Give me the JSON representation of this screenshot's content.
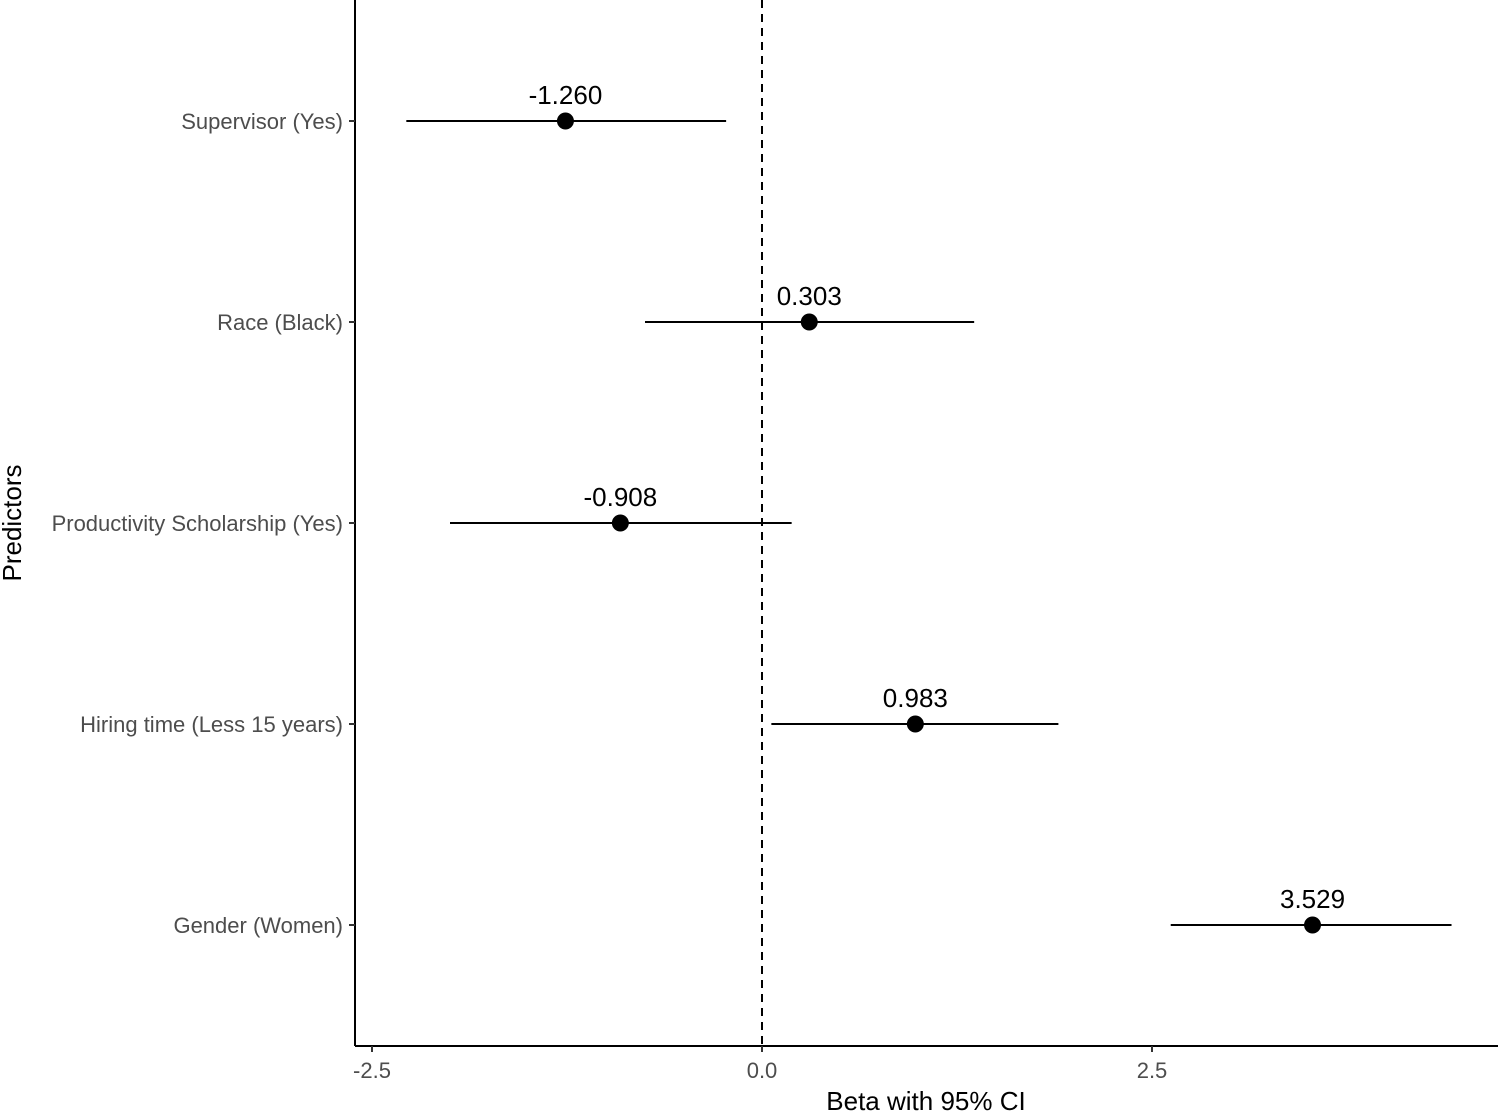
{
  "chart_data": {
    "type": "scatter",
    "title": "",
    "xlabel": "Beta with 95% CI",
    "ylabel": "Predictors",
    "xlim": [
      -2.5,
      4.85
    ],
    "x_ticks": [
      -2.5,
      0.0,
      2.5
    ],
    "x_tick_labels": [
      "-2.5",
      "0.0",
      "2.5"
    ],
    "reference_line": 0,
    "grid": false,
    "legend": "none",
    "categories": [
      "Supervisor (Yes)",
      "Race (Black)",
      "Productivity Scholarship (Yes)",
      "Hiring time (Less 15 years)",
      "Gender (Women)"
    ],
    "estimates": [
      -1.26,
      0.303,
      -0.908,
      0.983,
      3.529
    ],
    "estimate_labels": [
      "-1.260",
      "0.303",
      "-0.908",
      "0.983",
      "3.529"
    ],
    "ci_lower": [
      -2.28,
      -0.75,
      -2.0,
      0.06,
      2.62
    ],
    "ci_upper": [
      -0.23,
      1.36,
      0.19,
      1.9,
      4.42
    ],
    "colors": {
      "marks": "#000000",
      "ticks": "#4d4d4d"
    }
  }
}
